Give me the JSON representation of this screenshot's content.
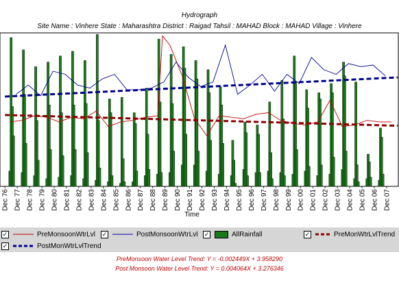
{
  "title": "Hydrograph",
  "subtitle": "Site Name : Vinhere  State : Maharashtra District : Raigad  Tahsil : MAHAD  Block : MAHAD Village : Vinhere",
  "legend": {
    "pre": "PreMonsoonWtrLvl",
    "post": "PostMonsoonWtrLvl",
    "rain": "AllRainfall",
    "pretrend": "PreMonWtrLvlTrend",
    "posttrend": "PostMonWtrLvlTrend"
  },
  "trend_text": {
    "pre": "PreMonsoon Water Level Trend: Y = -0.002449X + 3.958290",
    "post": "Post Monsoon Water Level Trend: Y = 0.004064X + 3.276346"
  },
  "colors": {
    "pre": "#c00000",
    "post": "#000099",
    "rain": "#1a7a1a",
    "pretrend": "#8b0000",
    "posttrend": "#00008b",
    "legend_bg": "#d6d6d6"
  },
  "chart_data": {
    "type": "line",
    "xlabel": "Time",
    "ylabel": "",
    "grid": false,
    "legend_position": "bottom",
    "categories": [
      "Dec 76",
      "Dec 77",
      "Dec 78",
      "Dec 79",
      "Dec 80",
      "Dec 81",
      "Dec 82",
      "Dec 83",
      "Dec 84",
      "Dec 85",
      "Dec 86",
      "Dec 87",
      "Dec 88",
      "Dec 89",
      "Dec 90",
      "Dec 91",
      "Dec 92",
      "Dec 93",
      "Dec 94",
      "Dec 95",
      "Dec 96",
      "Dec 97",
      "Dec 98",
      "Dec 99",
      "Dec 00",
      "Dec 01",
      "Dec 02",
      "Dec 03",
      "Dec 04",
      "Dec 05",
      "Dec 06",
      "Dec 07"
    ],
    "ylim": [
      0,
      10
    ],
    "series": [
      {
        "name": "PreMonsoonWtrLvl",
        "kind": "line",
        "x": [
          1976.4,
          1977.4,
          1978.4,
          1979.4,
          1980.4,
          1981.4,
          1982.4,
          1983.4,
          1984.4,
          1985.4,
          1986.4,
          1987.4,
          1988.4,
          1988.8,
          1989.4,
          1990.4,
          1991.4,
          1992.4,
          1993.4,
          1994.4,
          1995.4,
          1996.4,
          1997.4,
          1998.4,
          1999.4,
          2000.4,
          2001.4,
          2002.4,
          2003.4,
          2004.4,
          2005.4,
          2006.4,
          2007.4
        ],
        "y": [
          4.2,
          4.3,
          4.6,
          4.5,
          4.2,
          4.5,
          4.4,
          4.9,
          3.9,
          4.2,
          4.3,
          4.5,
          4.6,
          9.8,
          9.2,
          7.2,
          4.4,
          3.3,
          4.6,
          4.5,
          4.4,
          4.7,
          4.8,
          4.3,
          4.1,
          4.0,
          4.2,
          5.6,
          3.9,
          4.0,
          4.3,
          4.2,
          4.2
        ]
      },
      {
        "name": "PostMonsoonWtrLvl",
        "kind": "line",
        "x": [
          1976.9,
          1977.9,
          1978.9,
          1979.9,
          1980.9,
          1981.9,
          1982.9,
          1983.9,
          1984.9,
          1985.9,
          1986.9,
          1987.9,
          1988.9,
          1989.9,
          1990.9,
          1991.9,
          1992.9,
          1993.9,
          1994.9,
          1995.9,
          1996.9,
          1997.9,
          1998.9,
          1999.9,
          2000.9,
          2001.9,
          2002.9,
          2003.9,
          2004.9,
          2005.9,
          2006.9
        ],
        "y": [
          6.0,
          6.6,
          5.9,
          7.5,
          7.3,
          6.6,
          6.4,
          7.0,
          7.3,
          6.3,
          6.3,
          6.4,
          6.8,
          8.1,
          7.1,
          6.5,
          6.8,
          9.2,
          6.0,
          6.6,
          7.3,
          6.2,
          7.3,
          6.7,
          8.4,
          7.6,
          7.3,
          8.0,
          7.8,
          7.9,
          7.2
        ]
      },
      {
        "name": "AllRainfall",
        "kind": "bar",
        "x": [
          1976.4,
          1976.5,
          1976.6,
          1976.7,
          1977.4,
          1977.5,
          1977.6,
          1977.7,
          1978.4,
          1978.5,
          1978.6,
          1978.7,
          1979.4,
          1979.5,
          1979.6,
          1979.7,
          1980.4,
          1980.5,
          1980.6,
          1980.7,
          1981.4,
          1981.5,
          1981.6,
          1981.7,
          1982.4,
          1982.5,
          1982.6,
          1982.7,
          1983.4,
          1983.5,
          1983.6,
          1983.7,
          1984.4,
          1984.5,
          1984.6,
          1984.7,
          1985.4,
          1985.5,
          1985.6,
          1985.7,
          1986.4,
          1986.5,
          1986.6,
          1986.7,
          1987.4,
          1987.5,
          1987.6,
          1987.7,
          1988.4,
          1988.5,
          1988.6,
          1988.7,
          1989.4,
          1989.5,
          1989.6,
          1989.7,
          1990.4,
          1990.5,
          1990.6,
          1990.7,
          1991.4,
          1991.5,
          1991.6,
          1991.7,
          1992.4,
          1992.5,
          1992.6,
          1992.7,
          1993.4,
          1993.5,
          1993.6,
          1993.7,
          1994.4,
          1994.5,
          1994.6,
          1994.7,
          1995.4,
          1995.5,
          1995.6,
          1995.7,
          1996.4,
          1996.5,
          1996.6,
          1996.7,
          1997.4,
          1997.5,
          1997.6,
          1997.7,
          1998.4,
          1998.5,
          1998.6,
          1998.7,
          1999.4,
          1999.5,
          1999.6,
          1999.7,
          2000.4,
          2000.5,
          2000.6,
          2000.7,
          2001.4,
          2001.5,
          2001.6,
          2001.7,
          2002.4,
          2002.5,
          2002.6,
          2002.7,
          2003.4,
          2003.5,
          2003.6,
          2003.7,
          2004.4,
          2004.5,
          2004.6,
          2004.7,
          2005.4,
          2005.5,
          2005.6,
          2005.7,
          2006.4,
          2006.5,
          2006.6,
          2006.7
        ],
        "y": [
          1.0,
          9.7,
          5.2,
          3.3,
          0.9,
          8.9,
          6.0,
          2.8,
          0.7,
          7.8,
          4.3,
          1.7,
          0.5,
          8.1,
          5.3,
          2.4,
          0.6,
          8.5,
          4.8,
          2.0,
          0.7,
          8.8,
          5.3,
          2.4,
          0.5,
          8.2,
          5.4,
          2.2,
          0.4,
          9.9,
          4.3,
          1.2,
          0.3,
          5.7,
          4.8,
          0.7,
          0.2,
          5.8,
          1.8,
          0.3,
          0.3,
          4.8,
          4.1,
          1.0,
          0.7,
          6.4,
          3.4,
          1.1,
          0.8,
          9.6,
          5.5,
          0.9,
          0.9,
          8.6,
          5.4,
          2.3,
          1.4,
          9.1,
          7.7,
          3.4,
          1.4,
          8.2,
          7.0,
          2.3,
          1.0,
          7.6,
          6.1,
          3.0,
          0.8,
          6.5,
          5.3,
          2.8,
          0.7,
          3.0,
          1.7,
          0.2,
          1.1,
          4.2,
          3.5,
          0.7,
          0.9,
          4.0,
          3.4,
          0.9,
          1.0,
          5.5,
          2.2,
          0.5,
          0.9,
          6.9,
          4.4,
          0.7,
          0.8,
          8.5,
          6.8,
          2.4,
          1.0,
          6.3,
          5.1,
          1.3,
          0.7,
          6.1,
          5.7,
          1.4,
          0.8,
          6.7,
          6.1,
          1.9,
          1.1,
          8.1,
          7.2,
          2.3,
          0.5,
          6.8,
          1.4,
          0.3,
          0.5,
          2.1,
          1.6,
          0.6,
          0.4,
          3.8,
          3.2,
          0.8
        ]
      },
      {
        "name": "PreMonWtrLvlTrend",
        "kind": "trend",
        "x": [
          1976.0,
          2007.9
        ],
        "y": [
          4.65,
          3.95
        ]
      },
      {
        "name": "PostMonWtrLvlTrend",
        "kind": "trend",
        "x": [
          1976.0,
          2007.9
        ],
        "y": [
          5.85,
          7.1
        ]
      }
    ]
  }
}
